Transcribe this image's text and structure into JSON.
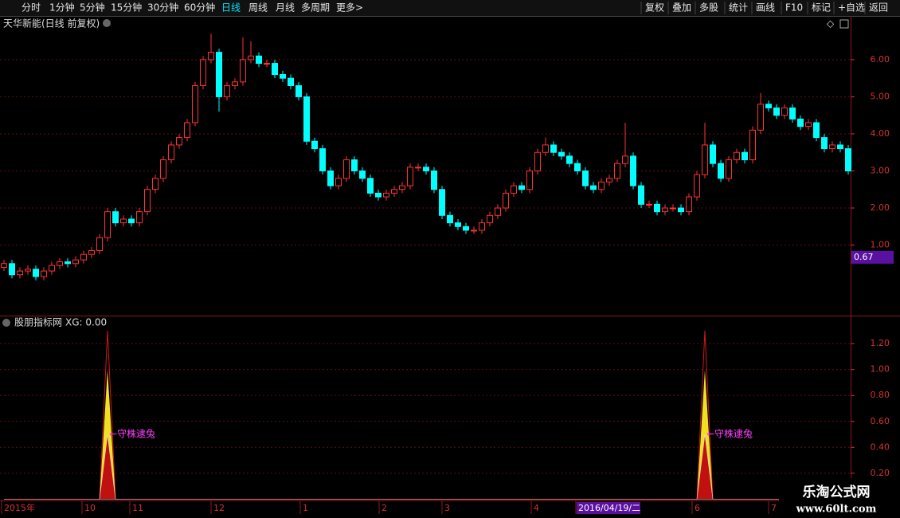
{
  "toolbar": {
    "left": [
      "分时",
      "1分钟",
      "5分钟",
      "15分钟",
      "30分钟",
      "60分钟",
      "日线",
      "周线",
      "月线",
      "多周期",
      "更多>"
    ],
    "right": [
      "复权",
      "叠加",
      "多股",
      "统计",
      "画线",
      "F10",
      "标记",
      "+自选",
      "返回"
    ]
  },
  "main_chart": {
    "type": "candlestick",
    "title": "天华新能(日线 前复权)",
    "ylim": [
      -0.88,
      7.18
    ],
    "yticks": [
      {
        "value": 1,
        "label": "1.00"
      },
      {
        "value": 2,
        "label": "2.00"
      },
      {
        "value": 3,
        "label": "3.00"
      },
      {
        "value": 4,
        "label": "4.00"
      },
      {
        "value": 5,
        "label": "5.00"
      },
      {
        "value": 6,
        "label": "6.00"
      }
    ],
    "cursor_value": 0.67,
    "up_color": "#ff3232",
    "down_color": "#00ffff",
    "open": [
      0.4,
      0.5,
      0.2,
      0.3,
      0.35,
      0.15,
      0.3,
      0.45,
      0.55,
      0.5,
      0.6,
      0.75,
      0.85,
      1.2,
      1.9,
      1.6,
      1.7,
      1.6,
      1.9,
      2.5,
      2.8,
      3.3,
      3.7,
      3.9,
      4.3,
      5.3,
      6.0,
      6.2,
      5.0,
      5.3,
      5.4,
      6.0,
      6.1,
      5.9,
      5.9,
      5.6,
      5.5,
      5.3,
      5.0,
      3.8,
      3.6,
      3.0,
      2.6,
      2.8,
      3.3,
      3.0,
      2.8,
      2.4,
      2.3,
      2.4,
      2.5,
      2.6,
      3.1,
      3.1,
      3.0,
      2.5,
      1.8,
      1.6,
      1.5,
      1.4,
      1.4,
      1.6,
      1.8,
      2.0,
      2.4,
      2.6,
      2.5,
      3.0,
      3.5,
      3.7,
      3.5,
      3.4,
      3.2,
      3.0,
      2.6,
      2.5,
      2.7,
      2.8,
      3.2,
      3.4,
      2.6,
      2.1,
      2.1,
      1.9,
      2.0,
      2.0,
      1.9,
      2.3,
      2.9,
      3.7,
      3.2,
      2.8,
      3.3,
      3.5,
      3.3,
      4.1,
      4.8,
      4.7,
      4.5,
      4.7,
      4.4,
      4.2,
      4.3,
      3.9,
      3.6,
      3.7,
      3.6
    ],
    "high": [
      0.6,
      0.6,
      0.4,
      0.45,
      0.45,
      0.4,
      0.55,
      0.65,
      0.65,
      0.7,
      0.85,
      0.95,
      1.3,
      2.0,
      2.0,
      1.8,
      1.8,
      2.0,
      2.6,
      2.9,
      3.4,
      3.8,
      4.0,
      4.4,
      5.4,
      6.1,
      6.7,
      6.3,
      5.4,
      5.5,
      6.6,
      6.5,
      6.2,
      6.0,
      6.0,
      5.7,
      5.6,
      5.4,
      5.1,
      3.9,
      3.7,
      3.1,
      2.9,
      3.4,
      3.4,
      3.1,
      2.9,
      2.5,
      2.5,
      2.6,
      2.7,
      3.2,
      3.2,
      3.2,
      3.1,
      2.6,
      1.9,
      1.7,
      1.6,
      1.5,
      1.7,
      1.9,
      2.1,
      2.5,
      2.7,
      2.7,
      3.1,
      3.6,
      3.9,
      3.8,
      3.6,
      3.5,
      3.3,
      3.1,
      2.7,
      2.8,
      2.9,
      3.3,
      4.3,
      3.5,
      2.7,
      2.2,
      2.2,
      2.1,
      2.1,
      2.1,
      2.4,
      3.0,
      4.3,
      3.8,
      3.3,
      3.4,
      3.6,
      3.6,
      4.2,
      5.1,
      4.9,
      4.8,
      4.8,
      4.8,
      4.5,
      4.4,
      4.4,
      4.0,
      3.8,
      3.8,
      3.7
    ],
    "low": [
      0.3,
      0.1,
      0.1,
      0.2,
      0.05,
      0.05,
      0.2,
      0.35,
      0.4,
      0.4,
      0.5,
      0.65,
      0.75,
      1.1,
      1.5,
      1.5,
      1.5,
      1.5,
      1.8,
      2.4,
      2.7,
      3.2,
      3.6,
      3.8,
      4.2,
      5.2,
      5.9,
      4.6,
      4.9,
      5.2,
      5.3,
      5.9,
      5.8,
      5.8,
      5.5,
      5.4,
      5.2,
      4.9,
      3.7,
      3.5,
      2.9,
      2.5,
      2.5,
      2.7,
      2.9,
      2.7,
      2.3,
      2.2,
      2.2,
      2.3,
      2.4,
      2.5,
      3.0,
      2.9,
      2.4,
      1.7,
      1.5,
      1.4,
      1.3,
      1.3,
      1.3,
      1.5,
      1.7,
      1.9,
      2.3,
      2.4,
      2.4,
      2.9,
      3.4,
      3.4,
      3.3,
      3.1,
      2.9,
      2.5,
      2.4,
      2.4,
      2.6,
      2.7,
      3.1,
      2.5,
      2.0,
      2.0,
      1.8,
      1.8,
      1.9,
      1.8,
      1.8,
      2.2,
      2.8,
      3.1,
      2.7,
      2.7,
      3.2,
      3.2,
      3.2,
      4.0,
      4.6,
      4.4,
      4.4,
      4.3,
      4.1,
      4.1,
      3.8,
      3.5,
      3.5,
      3.5,
      2.9
    ],
    "close": [
      0.5,
      0.2,
      0.3,
      0.35,
      0.15,
      0.3,
      0.45,
      0.55,
      0.5,
      0.6,
      0.75,
      0.85,
      1.2,
      1.9,
      1.6,
      1.7,
      1.6,
      1.9,
      2.5,
      2.8,
      3.3,
      3.7,
      3.9,
      4.3,
      5.3,
      6.0,
      6.2,
      5.0,
      5.3,
      5.4,
      6.0,
      6.1,
      5.9,
      5.9,
      5.6,
      5.5,
      5.3,
      5.0,
      3.8,
      3.6,
      3.0,
      2.6,
      2.8,
      3.3,
      3.0,
      2.8,
      2.4,
      2.3,
      2.4,
      2.5,
      2.6,
      3.1,
      3.1,
      3.0,
      2.5,
      1.8,
      1.6,
      1.5,
      1.4,
      1.4,
      1.6,
      1.8,
      2.0,
      2.4,
      2.6,
      2.5,
      3.0,
      3.5,
      3.7,
      3.5,
      3.4,
      3.2,
      3.0,
      2.6,
      2.5,
      2.7,
      2.8,
      3.2,
      3.4,
      2.6,
      2.1,
      2.1,
      1.9,
      2.0,
      2.0,
      1.9,
      2.3,
      2.9,
      3.7,
      3.2,
      2.8,
      3.3,
      3.5,
      3.3,
      4.1,
      4.8,
      4.7,
      4.5,
      4.7,
      4.4,
      4.2,
      4.3,
      3.9,
      3.6,
      3.7,
      3.6,
      3.0
    ]
  },
  "indicator": {
    "title": "股朋指标网",
    "xg_label": "XG: 0.00",
    "ylim": [
      -0.01,
      1.41
    ],
    "yticks": [
      {
        "value": 0.2,
        "label": "0.20"
      },
      {
        "value": 0.4,
        "label": "0.40"
      },
      {
        "value": 0.6,
        "label": "0.60"
      },
      {
        "value": 0.8,
        "label": "0.80"
      },
      {
        "value": 1,
        "label": "1.00"
      },
      {
        "value": 1.2,
        "label": "1.20"
      }
    ],
    "annotation": "←守株逮兔",
    "peak": [
      0,
      0,
      0,
      0,
      0,
      0,
      0,
      0,
      0,
      0,
      0,
      0,
      0,
      1.3,
      0,
      0,
      0,
      0,
      0,
      0,
      0,
      0,
      0,
      0,
      0,
      0,
      0,
      0,
      0,
      0,
      0,
      0,
      0,
      0,
      0,
      0,
      0,
      0,
      0,
      0,
      0,
      0,
      0,
      0,
      0,
      0,
      0,
      0,
      0,
      0,
      0,
      0,
      0,
      0,
      0,
      0,
      0,
      0,
      0,
      0,
      0,
      0,
      0,
      0,
      0,
      0,
      0,
      0,
      0,
      0,
      0,
      0,
      0,
      0,
      0,
      0,
      0,
      0,
      0,
      0,
      0,
      0,
      0,
      0,
      0,
      0,
      0,
      0,
      1.3,
      0,
      0,
      0,
      0,
      0,
      0,
      0,
      0,
      0,
      0,
      0,
      0,
      0,
      0,
      0,
      0,
      0,
      0,
      0
    ],
    "signal": [
      0,
      0,
      0,
      0,
      0,
      0,
      0,
      0,
      0,
      0,
      0,
      0,
      0,
      1,
      0,
      0,
      0,
      0,
      0,
      0,
      0,
      0,
      0,
      0,
      0,
      0,
      0,
      0,
      0,
      0,
      0,
      0,
      0,
      0,
      0,
      0,
      0,
      0,
      0,
      0,
      0,
      0,
      0,
      0,
      0,
      0,
      0,
      0,
      0,
      0,
      0,
      0,
      0,
      0,
      0,
      0,
      0,
      0,
      0,
      0,
      0,
      0,
      0,
      0,
      0,
      0,
      0,
      0,
      0,
      0,
      0,
      0,
      0,
      0,
      0,
      0,
      0,
      0,
      0,
      0,
      0,
      0,
      0,
      0,
      0,
      0,
      0,
      0,
      1,
      0,
      0,
      0,
      0,
      0,
      0,
      0,
      0,
      0,
      0,
      0,
      0,
      0,
      0,
      0,
      0,
      0,
      0,
      0
    ],
    "base": [
      0,
      0,
      0,
      0,
      0,
      0,
      0,
      0,
      0,
      0,
      0,
      0,
      0,
      0.5,
      0,
      0,
      0,
      0,
      0,
      0,
      0,
      0,
      0,
      0,
      0,
      0,
      0,
      0,
      0,
      0,
      0,
      0,
      0,
      0,
      0,
      0,
      0,
      0,
      0,
      0,
      0,
      0,
      0,
      0,
      0,
      0,
      0,
      0,
      0,
      0,
      0,
      0,
      0,
      0,
      0,
      0,
      0,
      0,
      0,
      0,
      0,
      0,
      0,
      0,
      0,
      0,
      0,
      0,
      0,
      0,
      0,
      0,
      0,
      0,
      0,
      0,
      0,
      0,
      0,
      0,
      0,
      0,
      0,
      0,
      0,
      0,
      0,
      0,
      0.5,
      0,
      0,
      0,
      0,
      0,
      0,
      0,
      0,
      0,
      0,
      0,
      0,
      0,
      0,
      0,
      0,
      0,
      0,
      0
    ]
  },
  "x_axis": {
    "labels": [
      "2015年",
      "10",
      "11",
      "12",
      "1",
      "2",
      "3",
      "4",
      "2016/04/19/二",
      "6",
      "7"
    ]
  },
  "watermark": {
    "name": "乐淘公式网",
    "url": "www.60lt.com"
  }
}
